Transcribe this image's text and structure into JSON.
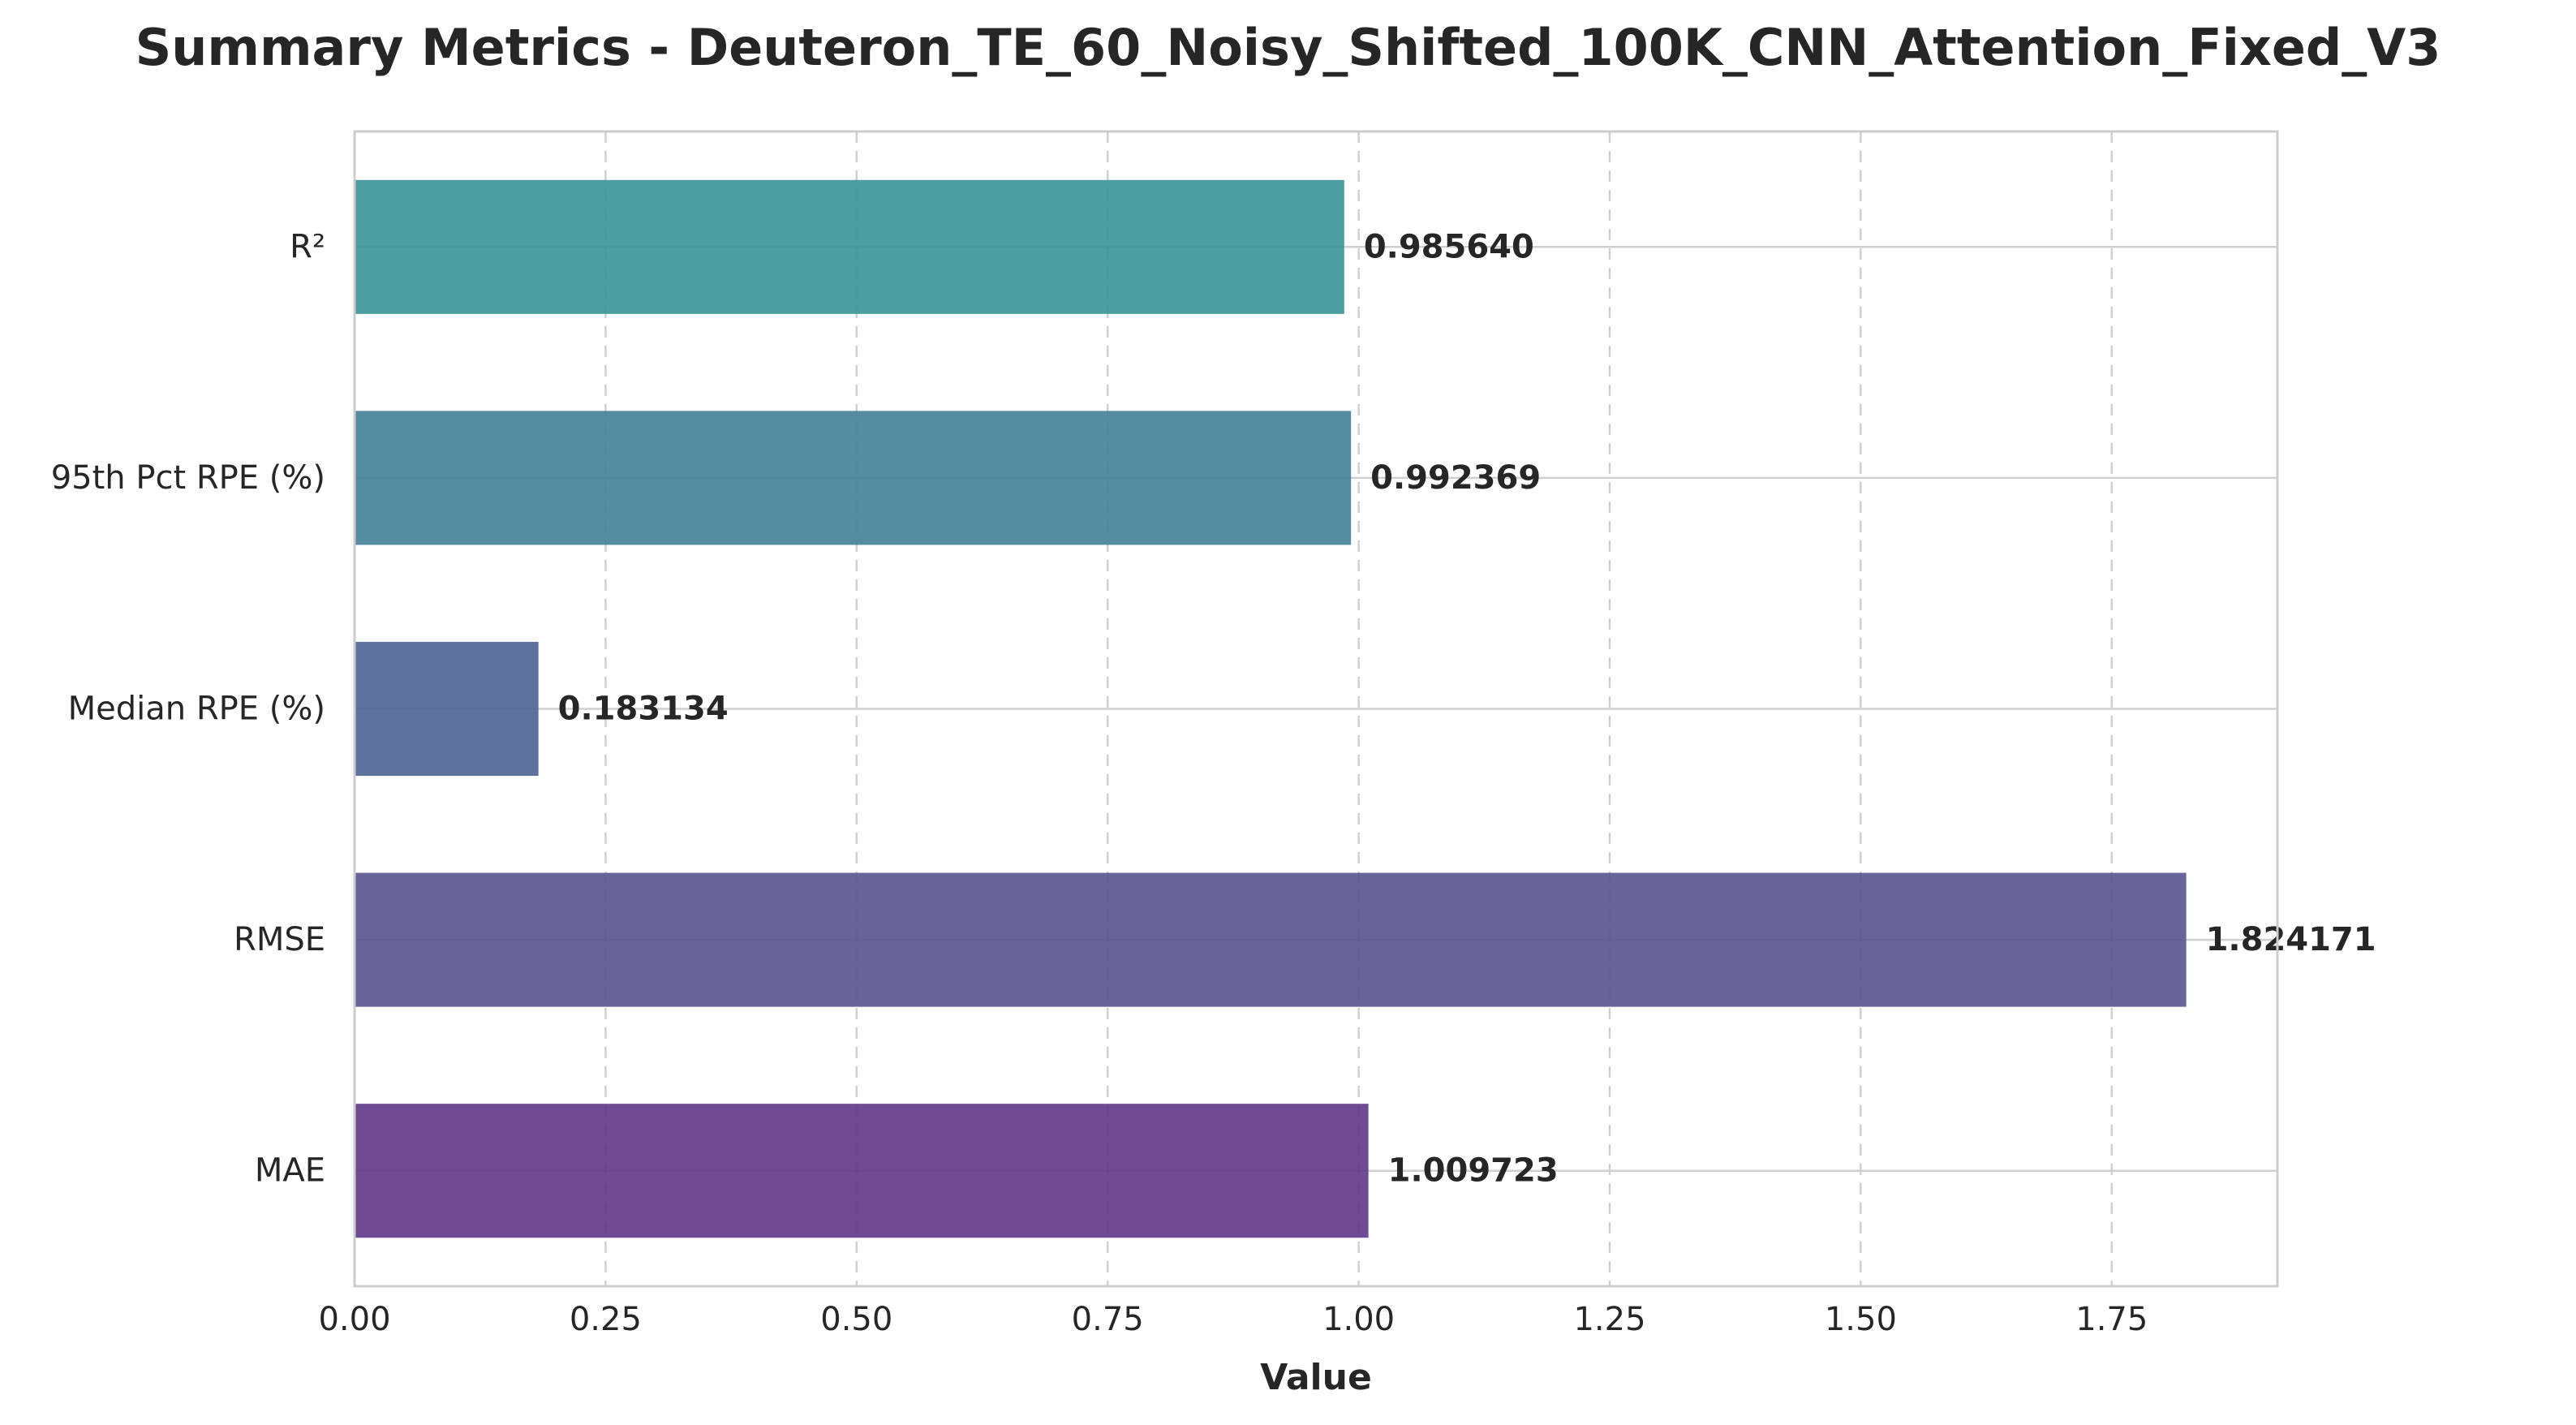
{
  "chart_data": {
    "type": "bar",
    "orientation": "horizontal",
    "title": "Summary Metrics - Deuteron_TE_60_Noisy_Shifted_100K_CNN_Attention_Fixed_V3",
    "xlabel": "Value",
    "ylabel": "",
    "categories": [
      "R²",
      "95th Pct RPE (%)",
      "Median RPE (%)",
      "RMSE",
      "MAE"
    ],
    "values": [
      0.98564,
      0.992369,
      0.183134,
      1.824171,
      1.009723
    ],
    "value_labels": [
      "0.985640",
      "0.992369",
      "0.183134",
      "1.824171",
      "1.009723"
    ],
    "colors": [
      "#3a9397",
      "#437f98",
      "#4b6494",
      "#56538f",
      "#5e3786"
    ],
    "xlim": [
      0,
      1.915
    ],
    "xticks": [
      0.0,
      0.25,
      0.5,
      0.75,
      1.0,
      1.25,
      1.5,
      1.75
    ],
    "xtick_labels": [
      "0.00",
      "0.25",
      "0.50",
      "0.75",
      "1.00",
      "1.25",
      "1.50",
      "1.75"
    ],
    "grid": true,
    "legend": "none"
  }
}
